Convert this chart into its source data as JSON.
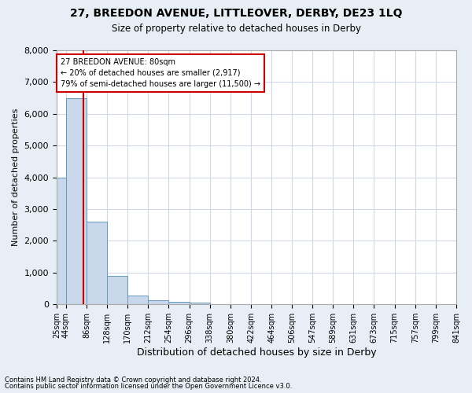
{
  "title_line1": "27, BREEDON AVENUE, LITTLEOVER, DERBY, DE23 1LQ",
  "title_line2": "Size of property relative to detached houses in Derby",
  "xlabel": "Distribution of detached houses by size in Derby",
  "ylabel": "Number of detached properties",
  "footer_line1": "Contains HM Land Registry data © Crown copyright and database right 2024.",
  "footer_line2": "Contains public sector information licensed under the Open Government Licence v3.0.",
  "bar_edges": [
    25,
    44,
    86,
    128,
    170,
    212,
    254,
    296,
    338,
    380,
    422,
    464,
    506,
    547,
    589,
    631,
    673,
    715,
    757,
    799,
    841
  ],
  "bar_heights": [
    4000,
    6500,
    2600,
    900,
    280,
    130,
    90,
    50,
    0,
    0,
    0,
    0,
    0,
    0,
    0,
    0,
    0,
    0,
    0,
    0
  ],
  "bar_color": "#c8d8ea",
  "bar_edge_color": "#6699bb",
  "property_size": 80,
  "property_line_color": "#cc0000",
  "annotation_text_line1": "27 BREEDON AVENUE: 80sqm",
  "annotation_text_line2": "← 20% of detached houses are smaller (2,917)",
  "annotation_text_line3": "79% of semi-detached houses are larger (11,500) →",
  "annotation_box_color": "#cc0000",
  "annotation_bg": "#ffffff",
  "grid_color": "#d0d8e8",
  "plot_bg_color": "#ffffff",
  "fig_bg_color": "#e8eef5",
  "ylim": [
    0,
    8000
  ],
  "yticks": [
    0,
    1000,
    2000,
    3000,
    4000,
    5000,
    6000,
    7000,
    8000
  ]
}
